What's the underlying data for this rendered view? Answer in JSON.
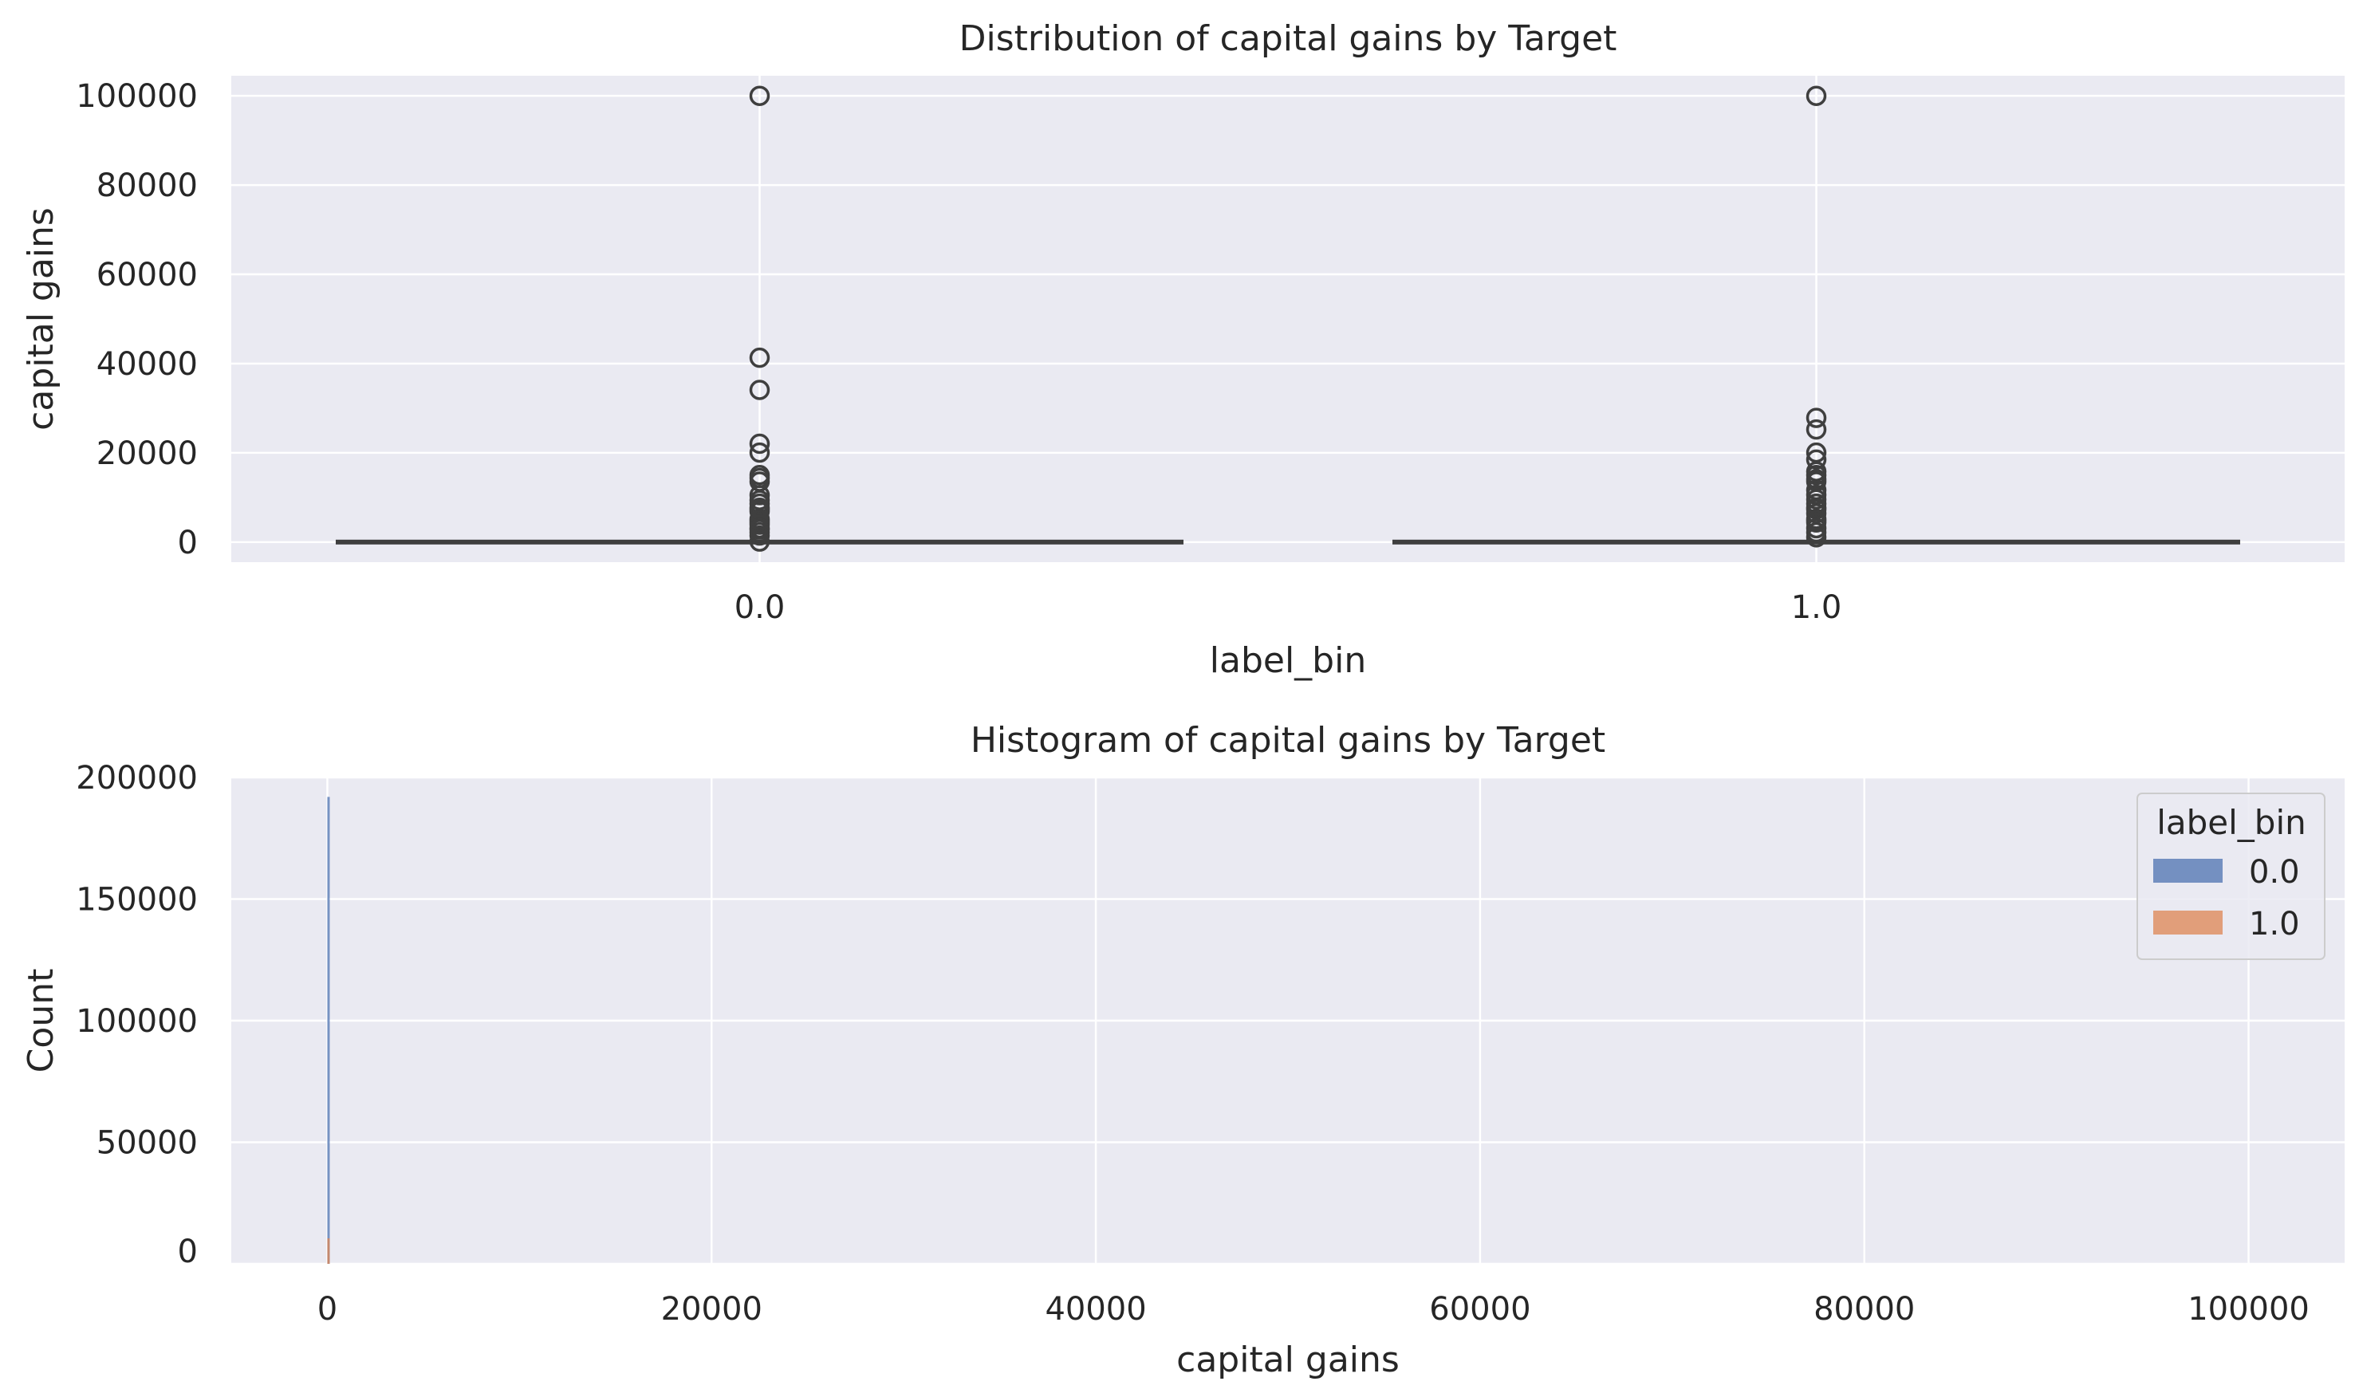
{
  "colors": {
    "panel_bg": "#eaeaf2",
    "grid": "#ffffff",
    "box_line": "#3f3f3f",
    "outlier_edge": "#3f3f3f",
    "series_0": "#4c72b0",
    "series_1": "#dd8452"
  },
  "chart_data": [
    {
      "type": "box",
      "title": "Distribution of capital gains by Target",
      "xlabel": "label_bin",
      "ylabel": "capital gains",
      "categories": [
        "0.0",
        "1.0"
      ],
      "ylim": [
        -4500,
        104500
      ],
      "yticks": [
        0,
        20000,
        40000,
        60000,
        80000,
        100000
      ],
      "ytick_labels": [
        "0",
        "20000",
        "40000",
        "60000",
        "80000",
        "100000"
      ],
      "grid": true,
      "boxes": [
        {
          "category": "0.0",
          "q1": 0,
          "median": 0,
          "q3": 0,
          "whisker_low": 0,
          "whisker_high": 0,
          "outliers": [
            99999,
            41310,
            34095,
            22040,
            20051,
            15024,
            14344,
            13550,
            10520,
            9386,
            8614,
            7688,
            7298,
            6849,
            5178,
            4787,
            4386,
            3908,
            3103,
            2829,
            2174,
            1471,
            114
          ]
        },
        {
          "category": "1.0",
          "q1": 0,
          "median": 0,
          "q3": 0,
          "whisker_low": 0,
          "whisker_high": 0,
          "outliers": [
            99999,
            27828,
            25236,
            20051,
            18481,
            15831,
            15024,
            14084,
            13550,
            11678,
            10605,
            9562,
            8614,
            7688,
            7298,
            6418,
            5178,
            4787,
            4386,
            3103,
            2174,
            1055
          ]
        }
      ]
    },
    {
      "type": "histogram",
      "title": "Histogram of capital gains by Target",
      "xlabel": "capital gains",
      "ylabel": "Count",
      "xlim": [
        -5000,
        105000
      ],
      "ylim": [
        0,
        200000
      ],
      "xticks": [
        0,
        20000,
        40000,
        60000,
        80000,
        100000
      ],
      "xtick_labels": [
        "0",
        "20000",
        "40000",
        "60000",
        "80000",
        "100000"
      ],
      "yticks": [
        0,
        50000,
        100000,
        150000,
        200000
      ],
      "ytick_labels": [
        "0",
        "50000",
        "100000",
        "150000",
        "200000"
      ],
      "grid": true,
      "legend": {
        "title": "label_bin",
        "position": "top-right"
      },
      "series": [
        {
          "name": "0.0",
          "bins": [
            {
              "x0": 0,
              "x1": 100,
              "count": 192000
            }
          ]
        },
        {
          "name": "1.0",
          "bins": [
            {
              "x0": 0,
              "x1": 100,
              "count": 10500
            }
          ]
        }
      ]
    }
  ]
}
